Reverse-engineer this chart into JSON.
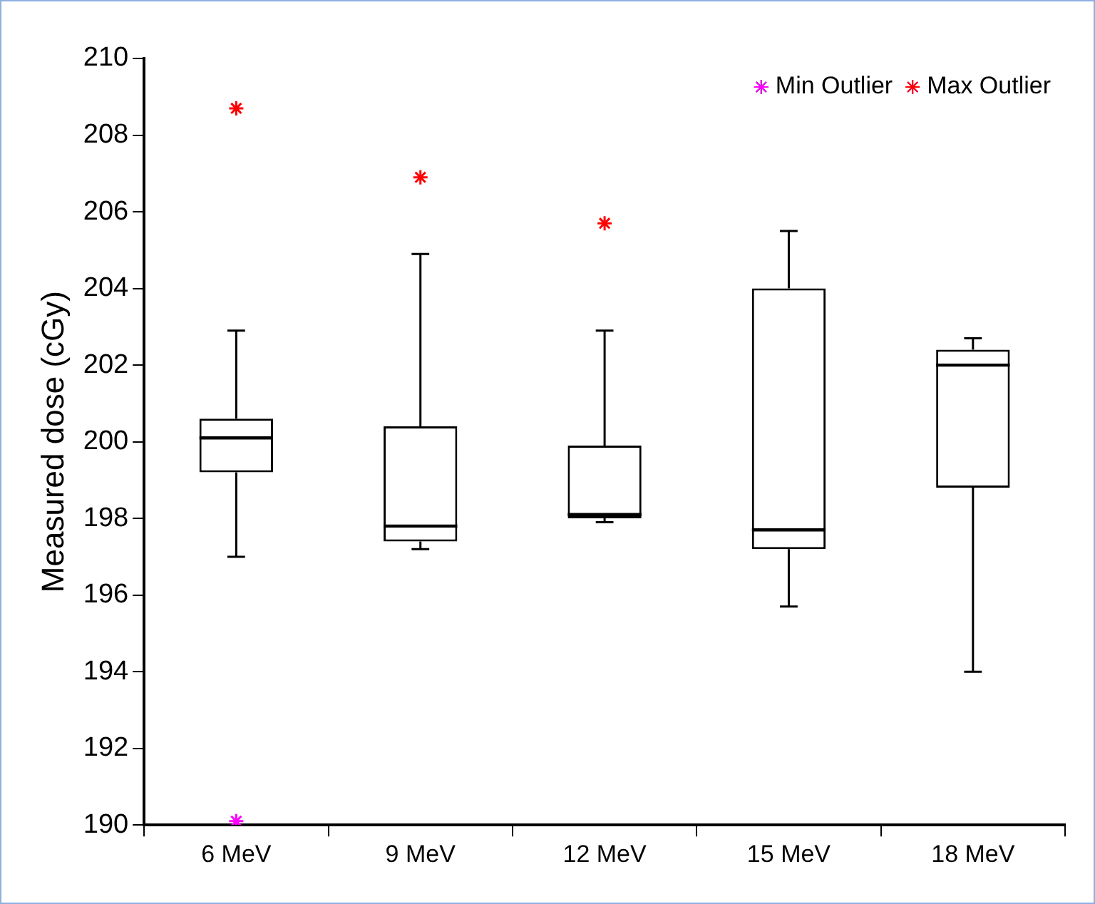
{
  "chart_data": {
    "type": "box",
    "ylabel": "Measured dose (cGy)",
    "categories": [
      "6 MeV",
      "9 MeV",
      "12 MeV",
      "15 MeV",
      "18 MeV"
    ],
    "boxes": [
      {
        "low": 197.0,
        "q1": 199.2,
        "median": 200.1,
        "q3": 200.6,
        "high": 202.9
      },
      {
        "low": 197.2,
        "q1": 197.4,
        "median": 197.8,
        "q3": 200.4,
        "high": 204.9
      },
      {
        "low": 197.9,
        "q1": 198.0,
        "median": 198.1,
        "q3": 199.9,
        "high": 202.9
      },
      {
        "low": 195.7,
        "q1": 197.2,
        "median": 197.7,
        "q3": 204.0,
        "high": 205.5
      },
      {
        "low": 194.0,
        "q1": 198.8,
        "median": 202.0,
        "q3": 202.4,
        "high": 202.7
      }
    ],
    "series": [
      {
        "name": "Min Outlier",
        "type": "scatter",
        "color": "#ff00ff",
        "x": [
          "6 MeV"
        ],
        "values": [
          190.1
        ]
      },
      {
        "name": "Max Outlier",
        "type": "scatter",
        "color": "#ff0000",
        "x": [
          "6 MeV",
          "9 MeV",
          "12 MeV"
        ],
        "values": [
          208.7,
          206.9,
          205.7
        ]
      }
    ],
    "ylim": [
      190,
      210
    ],
    "yticks": [
      190,
      192,
      194,
      196,
      198,
      200,
      202,
      204,
      206,
      208,
      210
    ],
    "grid": false,
    "legend": "top right",
    "marker": "cross"
  }
}
